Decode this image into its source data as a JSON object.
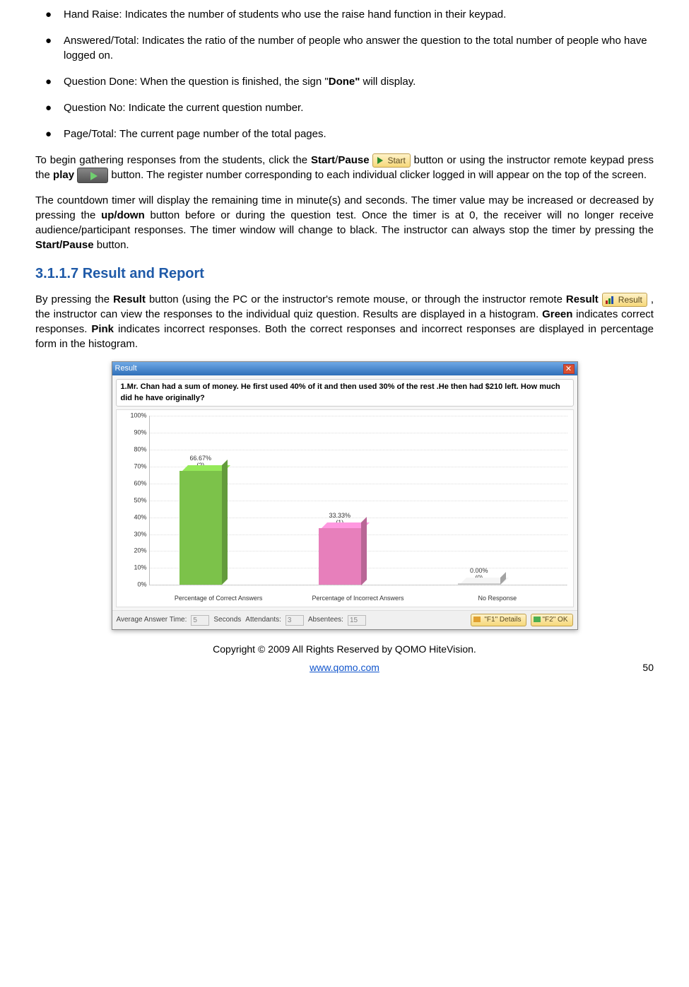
{
  "bullets": [
    {
      "label": "Hand Raise",
      "text": "Indicates the number of students who use the raise hand function in their keypad."
    },
    {
      "label": "Answered/Total",
      "text": "Indicates the ratio of the number of people who answer the question to the total number of people who have logged on."
    },
    {
      "label": "Question Done",
      "text_pre": "When the question is finished, the sign \"",
      "bold": "Done\"",
      "text_post": " will display."
    },
    {
      "label": "Question No",
      "text": "Indicate the current question number."
    },
    {
      "label": "Page/Total",
      "text": "The current page number of the total pages."
    }
  ],
  "para1": {
    "t1": "To begin gathering responses from the students, click the ",
    "b1": "Start",
    "t2": "/",
    "b2": "Pause",
    "start_btn": "Start",
    "t3": " button or using the instructor remote keypad press the ",
    "b3": "play",
    "t4": "button. The register number corresponding to each individual clicker logged in will appear on the top of the screen."
  },
  "para2": {
    "t1": "The countdown timer will display the remaining time in minute(s) and seconds. The timer value may be increased or decreased by pressing the ",
    "b1": "up/down",
    "t2": " button before or during the question test. Once the timer is at 0, the receiver will no longer receive audience/participant responses. The timer window will change to black. The instructor can always stop the timer by pressing the ",
    "b2": "Start/Pause",
    "t3": " button."
  },
  "heading": "3.1.1.7 Result and Report",
  "para3": {
    "t1": "By pressing the ",
    "b1": "Result",
    "t2": " button (using the PC or the instructor's remote mouse, or through the instructor remote ",
    "b2": "Result",
    "result_btn": "Result",
    "t3": " , the instructor can view the responses to the individual quiz question. Results are displayed in a histogram.  ",
    "b3": "Green",
    "t4": " indicates correct responses. ",
    "b4": "Pink",
    "t5": " indicates incorrect responses. Both the correct responses and incorrect responses are displayed in percentage form in the histogram."
  },
  "result_window": {
    "title": "Result",
    "question": "1.Mr. Chan had a sum of money. He first used 40% of it and then used 30% of the rest .He then had $210 left. How much did he have originally?",
    "chart": {
      "type": "bar",
      "ymax": 100,
      "ytick_step": 10,
      "y_labels": [
        "100%",
        "90%",
        "80%",
        "70%",
        "60%",
        "50%",
        "40%",
        "30%",
        "20%",
        "10%",
        "0%"
      ],
      "bars": [
        {
          "category": "Percentage of Correct Answers",
          "pct_label": "66.67%",
          "count_label": "(2)",
          "value": 66.67,
          "color": "#7cc24a"
        },
        {
          "category": "Percentage of Incorrect Answers",
          "pct_label": "33.33%",
          "count_label": "(1)",
          "value": 33.33,
          "color": "#e77fbb"
        },
        {
          "category": "No Response",
          "pct_label": "0.00%",
          "count_label": "(0)",
          "value": 0,
          "color": "#cccccc"
        }
      ],
      "grid_color": "#dddddd",
      "axis_color": "#bbbbbb",
      "background": "#ffffff",
      "label_fontsize": 9
    },
    "footer": {
      "avg_label": "Average Answer Time:",
      "avg_val": "5",
      "sec_label": "Seconds",
      "att_label": "Attendants:",
      "att_val": "3",
      "abs_label": "Absentees:",
      "abs_val": "15",
      "btn_details": "\"F1\" Details",
      "btn_ok": "\"F2\" OK"
    }
  },
  "copyright": "Copyright © 2009 All Rights Reserved by QOMO HiteVision.",
  "url": "www.qomo.com",
  "page_num": "50"
}
